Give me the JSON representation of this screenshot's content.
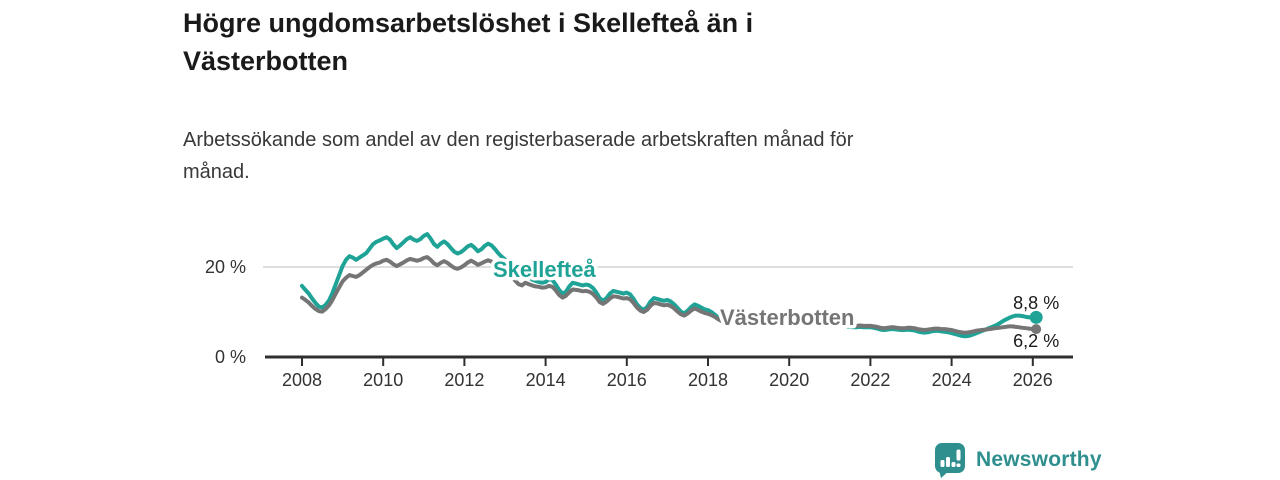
{
  "header": {
    "title_lines": [
      "Högre ungdomsarbetslöshet i Skellefteå än i",
      "Västerbotten"
    ],
    "subtitle_lines": [
      "Arbetssökande som andel av den registerbaserade arbetskraften månad för",
      "månad."
    ]
  },
  "chart_data": {
    "type": "line",
    "title": "Högre ungdomsarbetslöshet i Skellefteå än i Västerbotten",
    "subtitle": "Arbetssökande som andel av den registerbaserade arbetskraften månad för månad.",
    "x_unit": "monthly, fractional years",
    "x_start": 2008.0,
    "x_step_months": 1,
    "x_tick_values": [
      2008,
      2010,
      2012,
      2014,
      2016,
      2018,
      2020,
      2022,
      2024,
      2026
    ],
    "x_tick_labels": [
      "2008",
      "2010",
      "2012",
      "2014",
      "2016",
      "2018",
      "2020",
      "2022",
      "2024",
      "2026"
    ],
    "y_ticks": [
      {
        "value": 0,
        "label": "0 %"
      },
      {
        "value": 20,
        "label": "20 %"
      }
    ],
    "ylim": [
      0,
      30
    ],
    "xlim": [
      2007.1,
      2027.0
    ],
    "grid": "horizontal gridline at 20% only",
    "legend": "inline series labels on chart",
    "series": [
      {
        "name": "Skellefteå",
        "color": "#1fa396",
        "end_value": 8.8,
        "end_label": "8,8 %",
        "values": [
          15.8,
          14.9,
          14.1,
          13.0,
          12.0,
          11.2,
          11.0,
          11.6,
          12.6,
          14.2,
          16.2,
          18.2,
          20.2,
          21.6,
          22.4,
          22.1,
          21.6,
          22.1,
          22.6,
          23.1,
          24.1,
          25.1,
          25.6,
          25.9,
          26.3,
          26.6,
          26.1,
          25.0,
          24.2,
          24.8,
          25.5,
          26.2,
          26.6,
          26.1,
          25.8,
          26.2,
          26.9,
          27.3,
          26.3,
          25.1,
          24.5,
          25.2,
          25.7,
          25.1,
          24.2,
          23.4,
          23.0,
          23.3,
          23.9,
          24.6,
          24.9,
          24.3,
          23.5,
          23.9,
          24.7,
          25.2,
          24.8,
          24.0,
          23.1,
          22.3,
          21.7,
          21.1,
          20.3,
          19.1,
          18.0,
          17.6,
          18.4,
          17.8,
          17.2,
          16.9,
          16.7,
          16.5,
          16.7,
          17.3,
          17.1,
          16.1,
          14.9,
          14.1,
          14.5,
          15.7,
          16.5,
          16.3,
          16.1,
          15.9,
          16.1,
          15.9,
          15.3,
          14.3,
          13.1,
          12.5,
          13.1,
          14.1,
          14.7,
          14.5,
          14.3,
          14.1,
          14.3,
          13.9,
          12.9,
          11.7,
          10.9,
          10.5,
          11.1,
          12.3,
          13.1,
          12.9,
          12.7,
          12.5,
          12.7,
          12.3,
          11.7,
          10.9,
          10.1,
          9.7,
          10.3,
          11.1,
          11.7,
          11.4,
          11.0,
          10.6,
          10.4,
          10.0,
          9.4,
          8.8,
          8.4,
          8.2,
          8.6,
          9.0,
          9.2,
          9.0,
          8.8,
          8.6,
          8.4,
          8.2,
          7.9,
          7.5,
          7.1,
          6.9,
          7.1,
          7.4,
          7.6,
          7.5,
          7.4,
          7.3,
          7.4,
          7.5,
          7.8,
          8.3,
          8.6,
          8.5,
          8.3,
          8.1,
          7.9,
          7.7,
          7.6,
          7.5,
          7.4,
          7.3,
          7.2,
          7.0,
          6.9,
          6.8,
          6.7,
          6.6,
          6.6,
          6.7,
          6.6,
          6.6,
          6.6,
          6.5,
          6.3,
          6.1,
          6.0,
          6.1,
          6.2,
          6.2,
          6.1,
          6.0,
          6.0,
          6.1,
          6.0,
          5.9,
          5.7,
          5.5,
          5.4,
          5.5,
          5.7,
          5.8,
          5.8,
          5.7,
          5.6,
          5.5,
          5.3,
          5.1,
          4.9,
          4.7,
          4.6,
          4.7,
          4.9,
          5.2,
          5.5,
          5.8,
          6.1,
          6.4,
          6.7,
          7.0,
          7.4,
          7.9,
          8.3,
          8.7,
          9.0,
          9.2,
          9.2,
          9.1,
          8.9,
          8.8,
          8.8,
          8.8
        ]
      },
      {
        "name": "Västerbotten",
        "color": "#757575",
        "end_value": 6.2,
        "end_label": "6,2 %",
        "values": [
          13.2,
          12.7,
          12.1,
          11.3,
          10.7,
          10.2,
          10.1,
          10.7,
          11.5,
          12.7,
          14.1,
          15.5,
          16.8,
          17.6,
          18.2,
          18.0,
          17.8,
          18.2,
          18.8,
          19.4,
          20.0,
          20.5,
          20.8,
          21.0,
          21.4,
          21.6,
          21.2,
          20.6,
          20.2,
          20.6,
          21.0,
          21.5,
          21.8,
          21.6,
          21.4,
          21.6,
          22.0,
          22.2,
          21.6,
          20.8,
          20.4,
          20.9,
          21.3,
          20.9,
          20.3,
          19.8,
          19.6,
          19.9,
          20.4,
          21.0,
          21.4,
          21.0,
          20.5,
          20.8,
          21.2,
          21.5,
          21.2,
          20.6,
          20.0,
          19.4,
          18.8,
          18.4,
          17.8,
          17.0,
          16.2,
          15.9,
          16.5,
          16.2,
          15.9,
          15.7,
          15.6,
          15.4,
          15.5,
          15.8,
          15.6,
          14.8,
          13.8,
          13.2,
          13.6,
          14.4,
          15.0,
          14.9,
          14.8,
          14.6,
          14.7,
          14.5,
          14.0,
          13.2,
          12.2,
          11.8,
          12.3,
          13.0,
          13.5,
          13.4,
          13.2,
          13.0,
          13.1,
          12.8,
          12.0,
          11.0,
          10.3,
          10.0,
          10.5,
          11.4,
          12.0,
          11.9,
          11.7,
          11.5,
          11.6,
          11.3,
          10.8,
          10.1,
          9.5,
          9.2,
          9.7,
          10.3,
          10.8,
          10.5,
          10.1,
          9.8,
          9.6,
          9.3,
          8.9,
          8.4,
          8.0,
          7.8,
          8.1,
          8.4,
          8.6,
          8.4,
          8.2,
          8.1,
          8.0,
          7.8,
          7.6,
          7.3,
          7.1,
          7.0,
          7.2,
          7.4,
          7.5,
          7.4,
          7.3,
          7.3,
          7.4,
          7.5,
          7.8,
          8.2,
          8.4,
          8.3,
          8.1,
          7.9,
          7.8,
          7.6,
          7.5,
          7.4,
          7.4,
          7.3,
          7.2,
          7.1,
          7.0,
          7.0,
          6.9,
          6.9,
          6.9,
          7.0,
          6.9,
          6.9,
          6.9,
          6.8,
          6.7,
          6.5,
          6.4,
          6.5,
          6.6,
          6.6,
          6.5,
          6.4,
          6.4,
          6.5,
          6.5,
          6.4,
          6.2,
          6.1,
          6.0,
          6.1,
          6.2,
          6.3,
          6.3,
          6.2,
          6.2,
          6.1,
          6.0,
          5.8,
          5.6,
          5.5,
          5.4,
          5.5,
          5.6,
          5.8,
          5.9,
          6.0,
          6.1,
          6.2,
          6.3,
          6.4,
          6.5,
          6.6,
          6.7,
          6.8,
          6.8,
          6.7,
          6.6,
          6.5,
          6.4,
          6.3,
          6.2,
          6.2
        ]
      }
    ]
  },
  "footer": {
    "brand": "Newsworthy"
  },
  "colors": {
    "accent_teal": "#1fa396",
    "series_gray": "#757575",
    "axis": "#2f2f2f",
    "grid": "#d4d4d4",
    "tick_text": "#333333",
    "title_text": "#1a1a1a",
    "brand_teal": "#2f8f8f"
  }
}
